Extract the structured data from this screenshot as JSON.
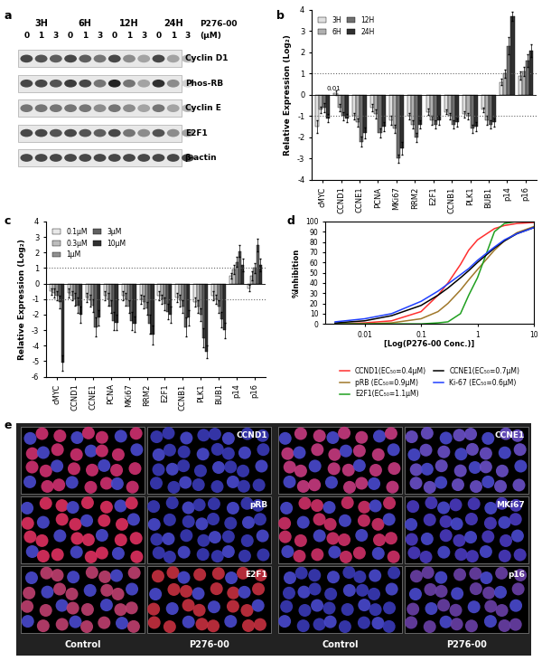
{
  "blot": {
    "panel": "a",
    "time_points": [
      "3H",
      "6H",
      "12H",
      "24H"
    ],
    "doses": [
      "0",
      "1",
      "3"
    ],
    "treatment": "P276-00",
    "unit": "(μM)",
    "rows": [
      {
        "label": "Cyclin D1",
        "intensity": [
          0.8,
          0.75,
          0.7,
          0.8,
          0.7,
          0.6,
          0.8,
          0.5,
          0.4,
          0.8,
          0.4,
          0.3
        ]
      },
      {
        "label": "Phos-RB",
        "intensity": [
          0.8,
          0.8,
          0.75,
          0.85,
          0.8,
          0.6,
          0.95,
          0.6,
          0.4,
          0.9,
          0.5,
          0.2
        ]
      },
      {
        "label": "Cyclin E",
        "intensity": [
          0.6,
          0.6,
          0.6,
          0.6,
          0.6,
          0.5,
          0.6,
          0.5,
          0.4,
          0.6,
          0.4,
          0.3
        ]
      },
      {
        "label": "E2F1",
        "intensity": [
          0.8,
          0.8,
          0.75,
          0.8,
          0.75,
          0.7,
          0.8,
          0.6,
          0.5,
          0.75,
          0.5,
          0.4
        ]
      },
      {
        "label": "β-actin",
        "intensity": [
          0.8,
          0.8,
          0.8,
          0.8,
          0.8,
          0.8,
          0.8,
          0.8,
          0.8,
          0.8,
          0.8,
          0.8
        ]
      }
    ]
  },
  "chart_data": [
    {
      "panel": "b",
      "type": "bar",
      "y_label": "Relative Expression (Log₂)",
      "categories": [
        "cMYC",
        "CCND1",
        "CCNE1",
        "PCNA",
        "MKi67",
        "RRM2",
        "E2F1",
        "CCNB1",
        "PLK1",
        "BUB1",
        "p14",
        "p16"
      ],
      "series": [
        {
          "name": "3H",
          "color": "#e0e0e0",
          "values": [
            -1.5,
            0.1,
            -1.0,
            -0.6,
            -1.2,
            -1.0,
            -0.8,
            -0.8,
            -0.9,
            -0.7,
            0.6,
            0.9
          ],
          "errors": [
            0.3,
            0.1,
            0.15,
            0.15,
            0.2,
            0.15,
            0.15,
            0.1,
            0.15,
            0.1,
            0.15,
            0.2
          ]
        },
        {
          "name": "6H",
          "color": "#b0b0b0",
          "values": [
            -0.7,
            -0.6,
            -1.3,
            -0.9,
            -1.6,
            -1.4,
            -1.2,
            -1.0,
            -1.0,
            -1.2,
            1.0,
            1.1
          ],
          "errors": [
            0.15,
            0.15,
            0.2,
            0.2,
            0.2,
            0.2,
            0.2,
            0.15,
            0.15,
            0.2,
            0.2,
            0.2
          ]
        },
        {
          "name": "12H",
          "color": "#707070",
          "values": [
            -0.6,
            -1.0,
            -2.2,
            -1.8,
            -3.0,
            -2.0,
            -1.4,
            -1.4,
            -1.6,
            -1.4,
            2.3,
            1.6
          ],
          "errors": [
            0.2,
            0.2,
            0.25,
            0.2,
            0.2,
            0.2,
            0.2,
            0.2,
            0.2,
            0.2,
            0.4,
            0.3
          ]
        },
        {
          "name": "24H",
          "color": "#303030",
          "values": [
            -1.1,
            -1.1,
            -1.8,
            -1.5,
            -2.5,
            -1.4,
            -1.2,
            -1.3,
            -1.5,
            -1.3,
            3.7,
            2.1
          ],
          "errors": [
            0.2,
            0.2,
            0.25,
            0.2,
            0.3,
            0.2,
            0.2,
            0.2,
            0.2,
            0.2,
            0.2,
            0.3
          ]
        }
      ],
      "ylim": [
        -4,
        4
      ],
      "yticks": [
        -4,
        -3,
        -2,
        -1,
        0,
        1,
        2,
        3,
        4
      ],
      "reference_lines": [
        1,
        -1
      ],
      "annotations": [
        {
          "text": "0.01",
          "x": 0.6,
          "y": 0.15
        }
      ],
      "legend": "upper left"
    },
    {
      "panel": "c",
      "type": "bar",
      "y_label": "Relative Expression (Log₂)",
      "categories": [
        "cMYC",
        "CCND1",
        "CCNE1",
        "PCNA",
        "MKi67",
        "RRM2",
        "E2F1",
        "CCNB1",
        "PLK1",
        "BUB1",
        "p14",
        "p16"
      ],
      "series": [
        {
          "name": "0.1μM",
          "color": "#e8e8e8",
          "values": [
            -0.5,
            -0.6,
            -0.9,
            -0.8,
            -0.8,
            -1.0,
            -0.8,
            -0.9,
            -1.2,
            -0.8,
            0.5,
            -0.3
          ],
          "errors": [
            0.2,
            0.3,
            0.3,
            0.3,
            0.3,
            0.3,
            0.3,
            0.3,
            0.3,
            0.3,
            0.2,
            0.2
          ]
        },
        {
          "name": "0.3μM",
          "color": "#bdbdbd",
          "values": [
            -0.6,
            -0.8,
            -1.1,
            -1.0,
            -1.0,
            -1.2,
            -1.0,
            -1.1,
            -1.5,
            -1.0,
            0.9,
            0.5
          ],
          "errors": [
            0.3,
            0.3,
            0.4,
            0.4,
            0.4,
            0.4,
            0.3,
            0.4,
            0.4,
            0.3,
            0.3,
            0.3
          ]
        },
        {
          "name": "1μM",
          "color": "#909090",
          "values": [
            -0.8,
            -1.0,
            -1.4,
            -1.5,
            -1.5,
            -1.6,
            -1.3,
            -1.5,
            -2.0,
            -1.5,
            1.4,
            1.0
          ],
          "errors": [
            0.3,
            0.4,
            0.4,
            0.4,
            0.4,
            0.4,
            0.4,
            0.4,
            0.4,
            0.4,
            0.3,
            0.3
          ]
        },
        {
          "name": "3μM",
          "color": "#606060",
          "values": [
            -1.2,
            -1.4,
            -2.8,
            -2.4,
            -2.4,
            -2.6,
            -1.8,
            -2.8,
            -3.5,
            -2.3,
            2.1,
            2.5
          ],
          "errors": [
            0.4,
            0.5,
            0.6,
            0.6,
            0.6,
            0.6,
            0.5,
            0.6,
            0.6,
            0.5,
            0.4,
            0.4
          ]
        },
        {
          "name": "10μM",
          "color": "#303030",
          "values": [
            -5.1,
            -2.0,
            -2.2,
            -2.5,
            -2.6,
            -3.3,
            -2.0,
            -2.2,
            -4.4,
            -3.0,
            1.2,
            1.2
          ],
          "errors": [
            0.5,
            0.5,
            0.5,
            0.5,
            0.5,
            0.6,
            0.5,
            0.5,
            0.4,
            0.5,
            0.4,
            0.4
          ]
        }
      ],
      "ylim": [
        -6,
        4
      ],
      "yticks": [
        -6,
        -5,
        -4,
        -3,
        -2,
        -1,
        0,
        1,
        2,
        3,
        4
      ],
      "reference_lines": [
        1,
        -1
      ],
      "legend": "upper left"
    },
    {
      "panel": "d",
      "type": "line",
      "x_label": "[Log(P276-00 Conc.)]",
      "y_label": "%Inhibition",
      "log": "x",
      "x": [
        0.003,
        0.01,
        0.03,
        0.1,
        0.2,
        0.3,
        0.5,
        0.7,
        1,
        2,
        3,
        5,
        10
      ],
      "series": [
        {
          "name": "CCND1(EC₅₀=0.4μM)",
          "color": "#ff3030",
          "values": [
            0,
            1,
            3,
            12,
            28,
            40,
            58,
            72,
            82,
            93,
            96,
            98,
            99
          ]
        },
        {
          "name": "pRB (EC₅₀=0.9μM)",
          "color": "#a0782a",
          "values": [
            0,
            0,
            1,
            5,
            12,
            20,
            33,
            43,
            53,
            72,
            81,
            89,
            95
          ]
        },
        {
          "name": "E2F1(EC₅₀=1.1μM)",
          "color": "#20a020",
          "values": [
            0,
            0,
            0,
            0,
            1,
            2,
            10,
            28,
            45,
            90,
            98,
            100,
            100
          ]
        },
        {
          "name": "CCNE1(EC₅₀=0.7μM)",
          "color": "#000000",
          "values": [
            1,
            3,
            8,
            18,
            28,
            35,
            45,
            52,
            60,
            74,
            81,
            88,
            94
          ]
        },
        {
          "name": "Ki-67 (EC₅₀=0.6μM)",
          "color": "#2040ff",
          "values": [
            2,
            5,
            10,
            22,
            32,
            39,
            48,
            54,
            62,
            75,
            82,
            88,
            94
          ]
        }
      ],
      "xlim": [
        0.002,
        10
      ],
      "xticks": [
        0.01,
        0.1,
        1,
        10
      ],
      "ylim": [
        0,
        100
      ],
      "yticks": [
        0,
        10,
        20,
        30,
        40,
        50,
        60,
        70,
        80,
        90,
        100
      ],
      "legend": "below"
    }
  ],
  "images": {
    "panel": "e",
    "conditions": [
      "Control",
      "P276-00"
    ],
    "stains": [
      {
        "label": "CCND1",
        "control_color": "#d03070",
        "treated_color": "#3a3ab8"
      },
      {
        "label": "CCNE1",
        "control_color": "#c83a80",
        "treated_color": "#6a50c8"
      },
      {
        "label": "pRB",
        "control_color": "#e03060",
        "treated_color": "#3a3ab8"
      },
      {
        "label": "MKi67",
        "control_color": "#d03068",
        "treated_color": "#4a3ac0"
      },
      {
        "label": "E2F1",
        "control_color": "#c04070",
        "treated_color": "#c83040"
      },
      {
        "label": "p16",
        "control_color": "#3a3ab8",
        "treated_color": "#6a40a8"
      }
    ]
  }
}
